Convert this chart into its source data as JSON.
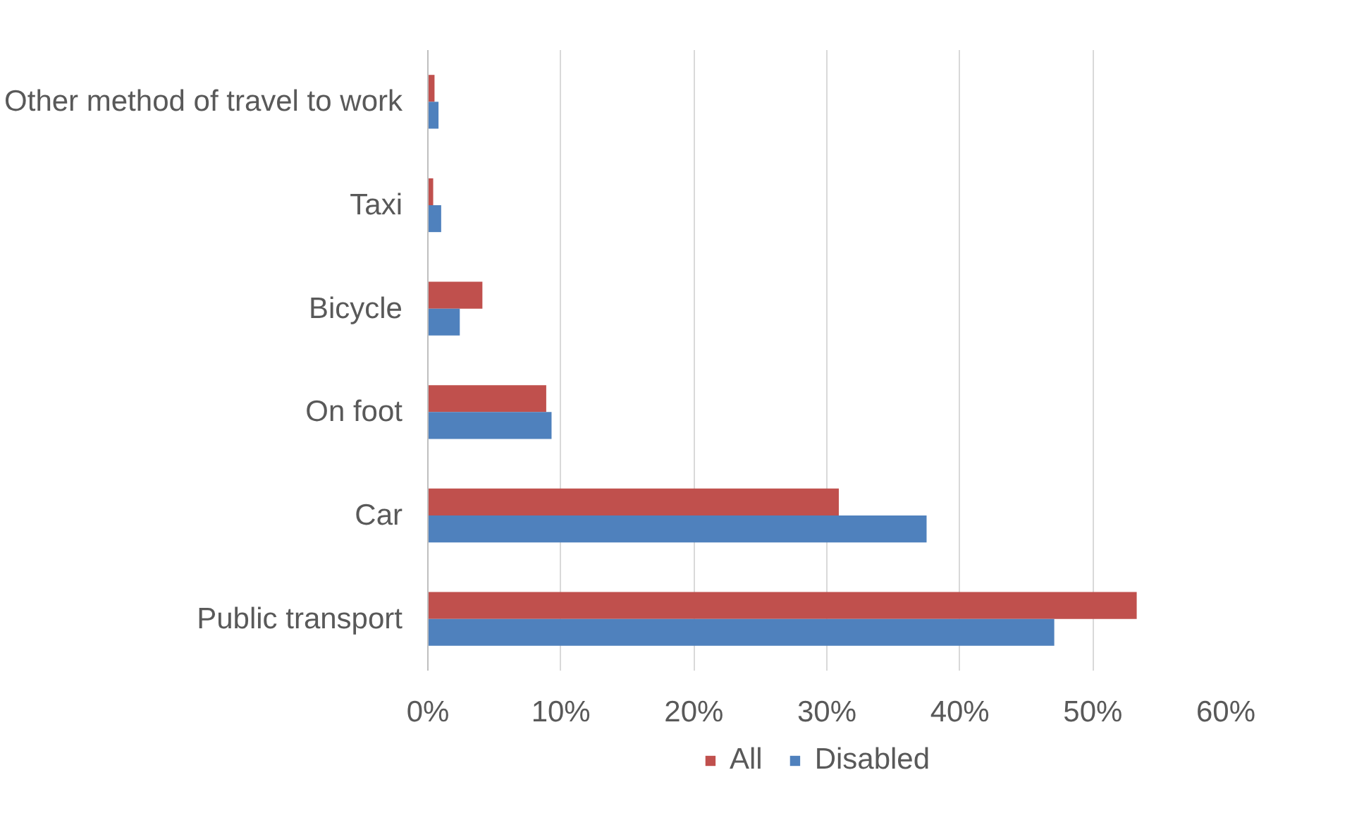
{
  "chart_data": {
    "type": "bar",
    "orientation": "horizontal",
    "categories": [
      "Other method of travel to work",
      "Taxi",
      "Bicycle",
      "On foot",
      "Car",
      "Public transport"
    ],
    "series": [
      {
        "name": "All",
        "color": "#c0504d",
        "values": [
          0.5,
          0.4,
          4.1,
          8.9,
          30.9,
          53.3
        ]
      },
      {
        "name": "Disabled",
        "color": "#4f81bd",
        "values": [
          0.8,
          1.0,
          2.4,
          9.3,
          37.5,
          47.1
        ]
      }
    ],
    "xlim": [
      0,
      60
    ],
    "xticks": [
      {
        "value": 0,
        "label": "0%"
      },
      {
        "value": 10,
        "label": "10%"
      },
      {
        "value": 20,
        "label": "20%"
      },
      {
        "value": 30,
        "label": "30%"
      },
      {
        "value": 40,
        "label": "40%"
      },
      {
        "value": 50,
        "label": "50%"
      },
      {
        "value": 60,
        "label": "60%"
      }
    ],
    "grid": "x",
    "legend": "bottom"
  }
}
